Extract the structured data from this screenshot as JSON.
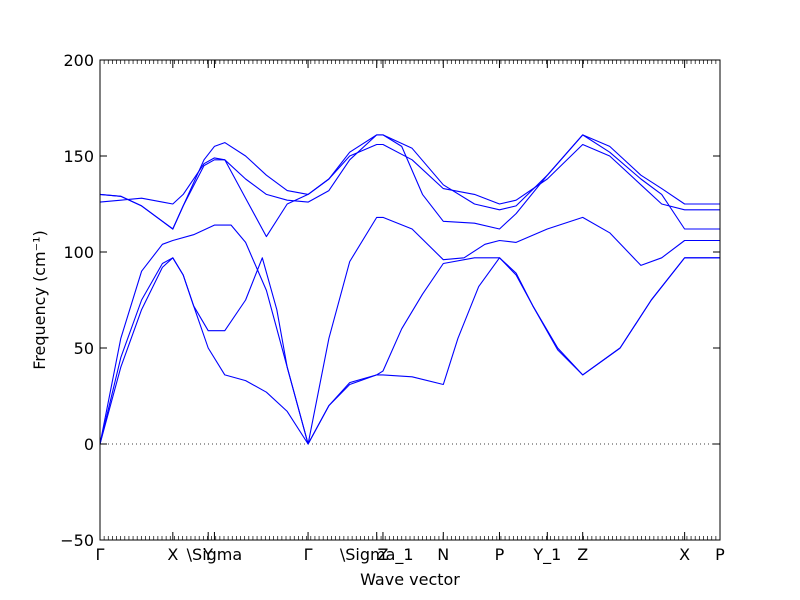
{
  "chart_data": {
    "type": "line",
    "title": "",
    "xlabel": "Wave vector",
    "ylabel": "Frequency (cm⁻¹)",
    "ylim": [
      -50,
      200
    ],
    "yticks": [
      -50,
      0,
      50,
      100,
      150,
      200
    ],
    "zero_line": "dotted",
    "grid": false,
    "legend": "none",
    "line_color": "#0000ff",
    "xlim": [
      0,
      2.98
    ],
    "kpoints": [
      {
        "label": "Γ",
        "x": 0.0
      },
      {
        "label": "X",
        "x": 0.35
      },
      {
        "label": "Y",
        "x": 0.52
      },
      {
        "label": "\\Sigma",
        "x": 0.55
      },
      {
        "label": "Γ",
        "x": 1.0
      },
      {
        "label": "\\Sigma_1",
        "x": 1.33
      },
      {
        "label": "Z",
        "x": 1.36
      },
      {
        "label": "N",
        "x": 1.65
      },
      {
        "label": "P",
        "x": 1.92
      },
      {
        "label": "Y_1",
        "x": 2.15
      },
      {
        "label": "Z",
        "x": 2.32
      },
      {
        "label": "X",
        "x": 2.81
      },
      {
        "label": "P",
        "x": 2.98
      }
    ],
    "series": [
      {
        "values": [
          [
            0,
            0
          ],
          [
            0.1,
            40
          ],
          [
            0.2,
            70
          ],
          [
            0.3,
            92
          ],
          [
            0.35,
            97
          ],
          [
            0.4,
            88
          ],
          [
            0.45,
            72
          ],
          [
            0.52,
            50
          ],
          [
            0.6,
            36
          ],
          [
            0.7,
            33
          ],
          [
            0.8,
            27
          ],
          [
            0.9,
            17
          ],
          [
            1.0,
            0
          ],
          [
            1.1,
            20
          ],
          [
            1.2,
            31
          ],
          [
            1.33,
            36
          ],
          [
            1.36,
            36
          ],
          [
            1.5,
            35
          ],
          [
            1.65,
            31
          ],
          [
            1.72,
            55
          ],
          [
            1.82,
            82
          ],
          [
            1.92,
            97
          ],
          [
            2.0,
            88
          ],
          [
            2.08,
            72
          ],
          [
            2.2,
            50
          ],
          [
            2.32,
            36
          ],
          [
            2.5,
            50
          ],
          [
            2.65,
            75
          ],
          [
            2.81,
            97
          ],
          [
            2.98,
            97
          ]
        ]
      },
      {
        "values": [
          [
            0,
            0
          ],
          [
            0.1,
            45
          ],
          [
            0.2,
            75
          ],
          [
            0.3,
            94
          ],
          [
            0.35,
            97
          ],
          [
            0.4,
            88
          ],
          [
            0.45,
            72
          ],
          [
            0.52,
            59
          ],
          [
            0.55,
            59
          ],
          [
            0.6,
            59
          ],
          [
            0.7,
            75
          ],
          [
            0.78,
            97
          ],
          [
            0.85,
            70
          ],
          [
            0.9,
            40
          ],
          [
            1.0,
            0
          ],
          [
            1.1,
            20
          ],
          [
            1.2,
            32
          ],
          [
            1.33,
            36
          ],
          [
            1.36,
            38
          ],
          [
            1.45,
            60
          ],
          [
            1.55,
            78
          ],
          [
            1.65,
            94
          ],
          [
            1.8,
            97
          ],
          [
            1.92,
            97
          ],
          [
            2.0,
            89
          ],
          [
            2.08,
            72
          ],
          [
            2.2,
            49
          ],
          [
            2.32,
            36
          ],
          [
            2.5,
            50
          ],
          [
            2.65,
            75
          ],
          [
            2.81,
            97
          ],
          [
            2.98,
            97
          ]
        ]
      },
      {
        "values": [
          [
            0,
            0
          ],
          [
            0.1,
            55
          ],
          [
            0.2,
            90
          ],
          [
            0.3,
            104
          ],
          [
            0.35,
            106
          ],
          [
            0.45,
            109
          ],
          [
            0.55,
            114
          ],
          [
            0.63,
            114
          ],
          [
            0.7,
            105
          ],
          [
            0.8,
            80
          ],
          [
            0.9,
            40
          ],
          [
            1.0,
            0
          ],
          [
            1.1,
            55
          ],
          [
            1.2,
            95
          ],
          [
            1.33,
            118
          ],
          [
            1.36,
            118
          ],
          [
            1.5,
            112
          ],
          [
            1.65,
            96
          ],
          [
            1.75,
            97
          ],
          [
            1.85,
            104
          ],
          [
            1.92,
            106
          ],
          [
            2.0,
            105
          ],
          [
            2.15,
            112
          ],
          [
            2.32,
            118
          ],
          [
            2.45,
            110
          ],
          [
            2.6,
            93
          ],
          [
            2.7,
            97
          ],
          [
            2.81,
            106
          ],
          [
            2.98,
            106
          ]
        ]
      },
      {
        "values": [
          [
            0,
            130
          ],
          [
            0.1,
            129
          ],
          [
            0.2,
            124
          ],
          [
            0.3,
            116
          ],
          [
            0.35,
            112
          ],
          [
            0.4,
            124
          ],
          [
            0.5,
            145
          ],
          [
            0.55,
            148
          ],
          [
            0.6,
            148
          ],
          [
            0.7,
            128
          ],
          [
            0.8,
            108
          ],
          [
            0.9,
            125
          ],
          [
            1.0,
            130
          ],
          [
            1.1,
            138
          ],
          [
            1.2,
            150
          ],
          [
            1.33,
            156
          ],
          [
            1.36,
            156
          ],
          [
            1.5,
            148
          ],
          [
            1.65,
            133
          ],
          [
            1.8,
            130
          ],
          [
            1.92,
            125
          ],
          [
            2.0,
            127
          ],
          [
            2.15,
            138
          ],
          [
            2.32,
            156
          ],
          [
            2.45,
            150
          ],
          [
            2.6,
            135
          ],
          [
            2.7,
            125
          ],
          [
            2.81,
            122
          ],
          [
            2.98,
            122
          ]
        ]
      },
      {
        "values": [
          [
            0,
            126
          ],
          [
            0.1,
            127
          ],
          [
            0.2,
            128
          ],
          [
            0.3,
            126
          ],
          [
            0.35,
            125
          ],
          [
            0.4,
            130
          ],
          [
            0.5,
            146
          ],
          [
            0.55,
            149
          ],
          [
            0.6,
            148
          ],
          [
            0.7,
            138
          ],
          [
            0.8,
            130
          ],
          [
            0.9,
            127
          ],
          [
            1.0,
            126
          ],
          [
            1.1,
            132
          ],
          [
            1.2,
            148
          ],
          [
            1.33,
            161
          ],
          [
            1.36,
            161
          ],
          [
            1.5,
            154
          ],
          [
            1.65,
            135
          ],
          [
            1.8,
            125
          ],
          [
            1.92,
            122
          ],
          [
            2.0,
            124
          ],
          [
            2.15,
            140
          ],
          [
            2.32,
            161
          ],
          [
            2.45,
            155
          ],
          [
            2.6,
            140
          ],
          [
            2.7,
            133
          ],
          [
            2.81,
            125
          ],
          [
            2.98,
            125
          ]
        ]
      },
      {
        "values": [
          [
            0,
            130
          ],
          [
            0.1,
            129
          ],
          [
            0.2,
            124
          ],
          [
            0.3,
            116
          ],
          [
            0.35,
            112
          ],
          [
            0.4,
            124
          ],
          [
            0.5,
            148
          ],
          [
            0.55,
            155
          ],
          [
            0.6,
            157
          ],
          [
            0.7,
            150
          ],
          [
            0.8,
            140
          ],
          [
            0.9,
            132
          ],
          [
            1.0,
            130
          ],
          [
            1.1,
            138
          ],
          [
            1.2,
            152
          ],
          [
            1.33,
            161
          ],
          [
            1.36,
            161
          ],
          [
            1.45,
            155
          ],
          [
            1.55,
            130
          ],
          [
            1.65,
            116
          ],
          [
            1.8,
            115
          ],
          [
            1.92,
            112
          ],
          [
            2.0,
            120
          ],
          [
            2.15,
            140
          ],
          [
            2.32,
            161
          ],
          [
            2.45,
            152
          ],
          [
            2.6,
            138
          ],
          [
            2.7,
            130
          ],
          [
            2.81,
            112
          ],
          [
            2.98,
            112
          ]
        ]
      }
    ]
  }
}
